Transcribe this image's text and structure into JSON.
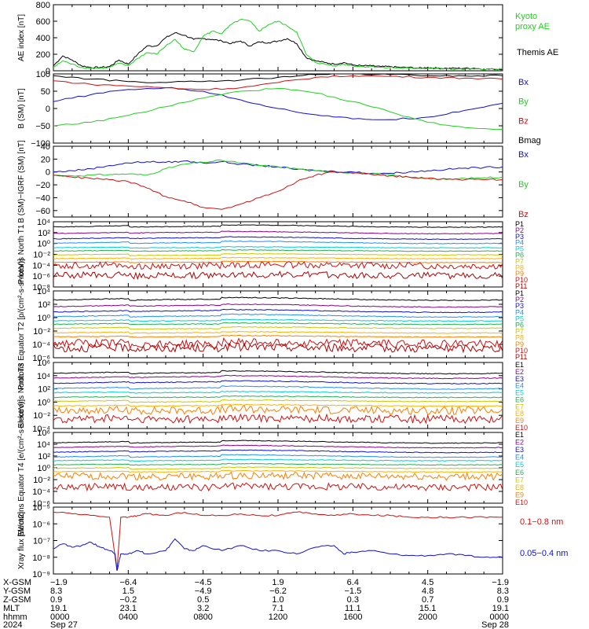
{
  "colors": {
    "black": "#000000",
    "green": "#20d020",
    "blue": "#1010d0",
    "red": "#d01010"
  },
  "chart_data": [
    {
      "type": "line",
      "ylabel": "AE index [nT]",
      "ylim": [
        0,
        800
      ],
      "yticks": [
        "0",
        "200",
        "400",
        "600",
        "800"
      ],
      "legend": [
        {
          "label": "Kyoto proxy AE",
          "color": "#20d020"
        },
        {
          "label": "Themis AE",
          "color": "#000000"
        }
      ],
      "series": [
        {
          "name": "Themis AE",
          "color": "#000000",
          "x": [
            0,
            0.5,
            1,
            1.5,
            2,
            2.5,
            3,
            3.5,
            4,
            4.5,
            5,
            5.5,
            6,
            6.5,
            7,
            7.5,
            8,
            8.5,
            9,
            9.5,
            10,
            10.5,
            11,
            11.5,
            12,
            12.5,
            13,
            13.5,
            14,
            14.5,
            15,
            15.5,
            16,
            16.5,
            17,
            17.5,
            18,
            18.5,
            19,
            19.5,
            20,
            20.5,
            21,
            21.5,
            22,
            22.5,
            23,
            23.5,
            24
          ],
          "y": [
            60,
            180,
            130,
            60,
            40,
            40,
            50,
            130,
            80,
            200,
            300,
            300,
            400,
            460,
            430,
            380,
            390,
            380,
            360,
            330,
            360,
            300,
            350,
            340,
            360,
            390,
            330,
            160,
            120,
            100,
            80,
            100,
            70,
            60,
            60,
            50,
            50,
            40,
            40,
            30,
            40,
            30,
            30,
            30,
            30,
            30,
            20,
            20,
            20
          ]
        },
        {
          "name": "Kyoto proxy AE",
          "color": "#20d020",
          "x": [
            0,
            0.5,
            1,
            1.5,
            2,
            2.5,
            3,
            3.5,
            4,
            4.5,
            5,
            5.5,
            6,
            6.5,
            7,
            7.5,
            8,
            8.5,
            9,
            9.5,
            10,
            10.5,
            11,
            11.5,
            12,
            12.5,
            13,
            13.5,
            14,
            14.5,
            15,
            15.5,
            16,
            16.5,
            17,
            17.5,
            18,
            18.5,
            19,
            19.5,
            20,
            20.5,
            21,
            21.5,
            22,
            22.5,
            23,
            23.5,
            24
          ],
          "y": [
            40,
            120,
            80,
            40,
            30,
            30,
            40,
            90,
            60,
            150,
            220,
            200,
            300,
            380,
            260,
            230,
            420,
            480,
            450,
            560,
            620,
            600,
            480,
            560,
            600,
            540,
            470,
            200,
            100,
            80,
            60,
            80,
            60,
            50,
            50,
            40,
            40,
            30,
            30,
            30,
            30,
            30,
            20,
            20,
            20,
            20,
            20,
            20,
            20
          ]
        }
      ]
    },
    {
      "type": "line",
      "ylabel": "B (SM) [nT]",
      "ylim": [
        -100,
        100
      ],
      "yticks": [
        "100",
        "50",
        "0",
        "−50",
        "−100"
      ],
      "legend": [
        {
          "label": "Bx",
          "color": "#1010d0"
        },
        {
          "label": "By",
          "color": "#20d020"
        },
        {
          "label": "Bz",
          "color": "#d01010"
        },
        {
          "label": "Bmag",
          "color": "#000000"
        }
      ],
      "series": [
        {
          "name": "Bmag",
          "color": "#000000",
          "x": [
            0,
            2,
            4,
            6,
            8,
            10,
            12,
            14,
            16,
            18,
            20,
            22,
            24
          ],
          "y": [
            95,
            85,
            78,
            75,
            78,
            82,
            90,
            98,
            100,
            98,
            95,
            94,
            95
          ]
        },
        {
          "name": "Bx",
          "color": "#1010d0",
          "x": [
            0,
            2,
            4,
            6,
            8,
            10,
            12,
            14,
            16,
            18,
            20,
            22,
            24
          ],
          "y": [
            20,
            40,
            55,
            60,
            50,
            25,
            0,
            -18,
            -30,
            -32,
            -25,
            -5,
            15
          ]
        },
        {
          "name": "By",
          "color": "#20d020",
          "x": [
            0,
            2,
            4,
            6,
            8,
            10,
            12,
            14,
            16,
            18,
            20,
            22,
            24
          ],
          "y": [
            -50,
            -40,
            -20,
            5,
            30,
            50,
            58,
            45,
            20,
            -10,
            -40,
            -55,
            -60
          ]
        },
        {
          "name": "Bz",
          "color": "#d01010",
          "x": [
            0,
            2,
            4,
            6,
            8,
            10,
            12,
            14,
            16,
            18,
            20,
            22,
            24
          ],
          "y": [
            80,
            70,
            65,
            60,
            55,
            60,
            75,
            90,
            95,
            93,
            90,
            88,
            85
          ]
        }
      ]
    },
    {
      "type": "line",
      "ylabel": "B (SM)−IGRF (SM) [nT]",
      "ylim": [
        -70,
        40
      ],
      "yticks": [
        "40",
        "20",
        "0",
        "−20",
        "−40",
        "−60"
      ],
      "legend": [
        {
          "label": "Bx",
          "color": "#1010d0"
        },
        {
          "label": "By",
          "color": "#20d020"
        },
        {
          "label": "Bz",
          "color": "#d01010"
        }
      ],
      "series": [
        {
          "name": "Bx",
          "color": "#1010d0",
          "x": [
            0,
            1,
            2,
            3,
            4,
            5,
            6,
            7,
            8,
            9,
            10,
            11,
            12,
            13,
            14,
            15,
            16,
            17,
            18,
            19,
            20,
            21,
            22,
            23,
            24
          ],
          "y": [
            0,
            2,
            5,
            10,
            14,
            16,
            15,
            17,
            14,
            16,
            12,
            10,
            8,
            4,
            2,
            1,
            0,
            -2,
            -2,
            0,
            2,
            4,
            6,
            7,
            8
          ]
        },
        {
          "name": "By",
          "color": "#20d020",
          "x": [
            0,
            1,
            2,
            3,
            4,
            5,
            6,
            7,
            8,
            9,
            10,
            11,
            12,
            13,
            14,
            15,
            16,
            17,
            18,
            19,
            20,
            21,
            22,
            23,
            24
          ],
          "y": [
            -5,
            -6,
            -5,
            -4,
            -3,
            -5,
            5,
            12,
            15,
            18,
            14,
            10,
            8,
            5,
            2,
            0,
            -1,
            -3,
            -5,
            -8,
            -10,
            -12,
            -10,
            -9,
            -8
          ]
        },
        {
          "name": "Bz",
          "color": "#d01010",
          "x": [
            0,
            1,
            2,
            3,
            4,
            5,
            6,
            7,
            8,
            9,
            10,
            11,
            12,
            13,
            14,
            15,
            16,
            17,
            18,
            19,
            20,
            21,
            22,
            23,
            24
          ],
          "y": [
            -5,
            -8,
            -10,
            -12,
            -15,
            -25,
            -38,
            -45,
            -55,
            -58,
            -50,
            -40,
            -30,
            -15,
            -5,
            0,
            -2,
            -4,
            -6,
            -8,
            -10,
            -11,
            -12,
            -12,
            -12
          ]
        }
      ]
    },
    {
      "type": "line",
      "ylabel": "Protons North T1",
      "log": true,
      "ylim_exp": [
        -8,
        4
      ],
      "yticks": [
        "10⁴",
        "10²",
        "10⁰",
        "10⁻²",
        "10⁻⁴",
        "10⁻⁶",
        "10⁻⁸"
      ],
      "channels": [
        "P1",
        "P2",
        "P3",
        "P4",
        "P5",
        "P6",
        "P7",
        "P8",
        "P9",
        "P10",
        "P11"
      ],
      "channel_colors": [
        "#000000",
        "#8b008b",
        "#1010d0",
        "#1e90ff",
        "#00ced1",
        "#20b050",
        "#c8c800",
        "#ffb000",
        "#ff7f00",
        "#d01010",
        "#b00000"
      ],
      "levels_exp": [
        3.2,
        2.0,
        1.0,
        0.2,
        -0.7,
        -1.3,
        -2.0,
        -2.7,
        -3.4,
        -4.0,
        -5.8
      ]
    },
    {
      "type": "line",
      "ylabel": "Protons Equator T2 [p/(cm²-s-sr-keV)]",
      "log": true,
      "ylim_exp": [
        -6,
        4
      ],
      "yticks": [
        "10⁴",
        "10²",
        "10⁰",
        "10⁻²",
        "10⁻⁴",
        "10⁻⁶"
      ],
      "channels": [
        "P1",
        "P2",
        "P3",
        "P4",
        "P5",
        "P6",
        "P7",
        "P8",
        "P9",
        "P10",
        "P11"
      ],
      "channel_colors": [
        "#000000",
        "#8b008b",
        "#1010d0",
        "#1e90ff",
        "#00ced1",
        "#20b050",
        "#c8c800",
        "#ffb000",
        "#ff7f00",
        "#d01010",
        "#b00000"
      ],
      "levels_exp": [
        2.8,
        1.8,
        1.0,
        0.3,
        -0.4,
        -0.9,
        -1.5,
        -2.2,
        -2.8,
        -3.8,
        -4.5
      ]
    },
    {
      "type": "line",
      "ylabel": "Electrons North T3",
      "log": true,
      "ylim_exp": [
        -4,
        6
      ],
      "yticks": [
        "10⁶",
        "10⁴",
        "10²",
        "10⁰",
        "10⁻²",
        "10⁻⁴"
      ],
      "channels": [
        "E1",
        "E2",
        "E3",
        "E4",
        "E5",
        "E6",
        "E7",
        "E8",
        "E9",
        "E10"
      ],
      "channel_colors": [
        "#000000",
        "#8b008b",
        "#1010d0",
        "#1e90ff",
        "#00ced1",
        "#20b050",
        "#c8c800",
        "#ffb000",
        "#ff7f00",
        "#d01010"
      ],
      "levels_exp": [
        4.5,
        3.8,
        3.0,
        2.2,
        1.5,
        0.8,
        0.2,
        -0.5,
        -1.2,
        -2.5
      ]
    },
    {
      "type": "line",
      "ylabel": "Electrons Equator T4 [e/(cm²-s-sr-keV)]",
      "log": true,
      "ylim_exp": [
        -6,
        6
      ],
      "yticks": [
        "10⁶",
        "10⁴",
        "10²",
        "10⁰",
        "10⁻²",
        "10⁻⁴",
        "10⁻⁶"
      ],
      "channels": [
        "E1",
        "E2",
        "E3",
        "E4",
        "E5",
        "E6",
        "E7",
        "E8",
        "E9",
        "E10"
      ],
      "channel_colors": [
        "#000000",
        "#8b008b",
        "#1010d0",
        "#1e90ff",
        "#00ced1",
        "#20b050",
        "#c8c800",
        "#ffb000",
        "#ff7f00",
        "#d01010"
      ],
      "levels_exp": [
        4.4,
        3.6,
        2.8,
        2.0,
        1.3,
        0.6,
        0.0,
        -0.6,
        -1.4,
        -3.2
      ]
    },
    {
      "type": "line",
      "ylabel": "Xray flux [W/m2]",
      "log": true,
      "ylim_exp": [
        -9,
        -5
      ],
      "yticks": [
        "10⁻⁵",
        "10⁻⁶",
        "10⁻⁷",
        "10⁻⁸",
        "10⁻⁹"
      ],
      "legend": [
        {
          "label": "0.1−0.8 nm",
          "color": "#d01010"
        },
        {
          "label": "0.05−0.4 nm",
          "color": "#1010d0"
        }
      ],
      "series": [
        {
          "name": "0.1−0.8 nm",
          "color": "#d01010",
          "x": [
            0,
            1,
            2,
            3,
            3.4,
            3.6,
            4,
            4.5,
            5,
            6,
            7,
            8,
            9,
            10,
            11,
            12,
            13,
            14,
            15,
            16,
            17,
            18,
            19,
            20,
            21,
            22,
            23,
            24
          ],
          "y": [
            -5.3,
            -5.4,
            -5.5,
            -5.6,
            -8.8,
            -5.6,
            -5.6,
            -5.5,
            -5.4,
            -5.5,
            -5.3,
            -5.5,
            -5.5,
            -5.4,
            -5.5,
            -5.5,
            -5.3,
            -5.4,
            -5.5,
            -5.4,
            -5.5,
            -5.5,
            -5.6,
            -5.6,
            -5.6,
            -5.6,
            -5.6,
            -5.6
          ]
        },
        {
          "name": "0.05−0.4 nm",
          "color": "#1010d0",
          "x": [
            0,
            0.5,
            1,
            1.5,
            2,
            2.5,
            3,
            3.3,
            3.4,
            3.6,
            4,
            4.5,
            5,
            6,
            6.5,
            7,
            7.5,
            8,
            9,
            10,
            11,
            12,
            13,
            14,
            15,
            15.5,
            16,
            17,
            18,
            19,
            20,
            21,
            22,
            23,
            24
          ],
          "y": [
            -7.5,
            -7.2,
            -7.4,
            -7.3,
            -7.1,
            -7.4,
            -7.6,
            -7.8,
            -8.8,
            -7.8,
            -7.8,
            -7.6,
            -7.8,
            -7.6,
            -6.9,
            -7.5,
            -7.6,
            -7.3,
            -7.6,
            -7.3,
            -7.6,
            -7.6,
            -7.8,
            -7.4,
            -7.3,
            -7.8,
            -7.7,
            -7.6,
            -7.8,
            -7.9,
            -7.9,
            -7.8,
            -7.9,
            -8.0,
            -8.0
          ]
        }
      ]
    }
  ],
  "ephemeris": {
    "row_labels": [
      "X-GSM",
      "Y-GSM",
      "Z-GSM",
      "MLT",
      "hhmm",
      "2024"
    ],
    "columns": [
      {
        "x": "−1.9",
        "y": "8.3",
        "z": "0.9",
        "mlt": "19.1",
        "hhmm": "0000",
        "date": "Sep 27"
      },
      {
        "x": "−6.4",
        "y": "1.5",
        "z": "−0.2",
        "mlt": "23.1",
        "hhmm": "0400",
        "date": ""
      },
      {
        "x": "−4.5",
        "y": "−4.9",
        "z": "0.5",
        "mlt": "3.2",
        "hhmm": "0800",
        "date": ""
      },
      {
        "x": "1.9",
        "y": "−6.2",
        "z": "1.0",
        "mlt": "7.1",
        "hhmm": "1200",
        "date": ""
      },
      {
        "x": "6.4",
        "y": "−1.5",
        "z": "0.3",
        "mlt": "11.1",
        "hhmm": "1600",
        "date": ""
      },
      {
        "x": "4.5",
        "y": "4.8",
        "z": "0.7",
        "mlt": "15.1",
        "hhmm": "2000",
        "date": ""
      },
      {
        "x": "−1.9",
        "y": "8.3",
        "z": "0.9",
        "mlt": "19.1",
        "hhmm": "0000",
        "date": "Sep 28"
      }
    ]
  }
}
